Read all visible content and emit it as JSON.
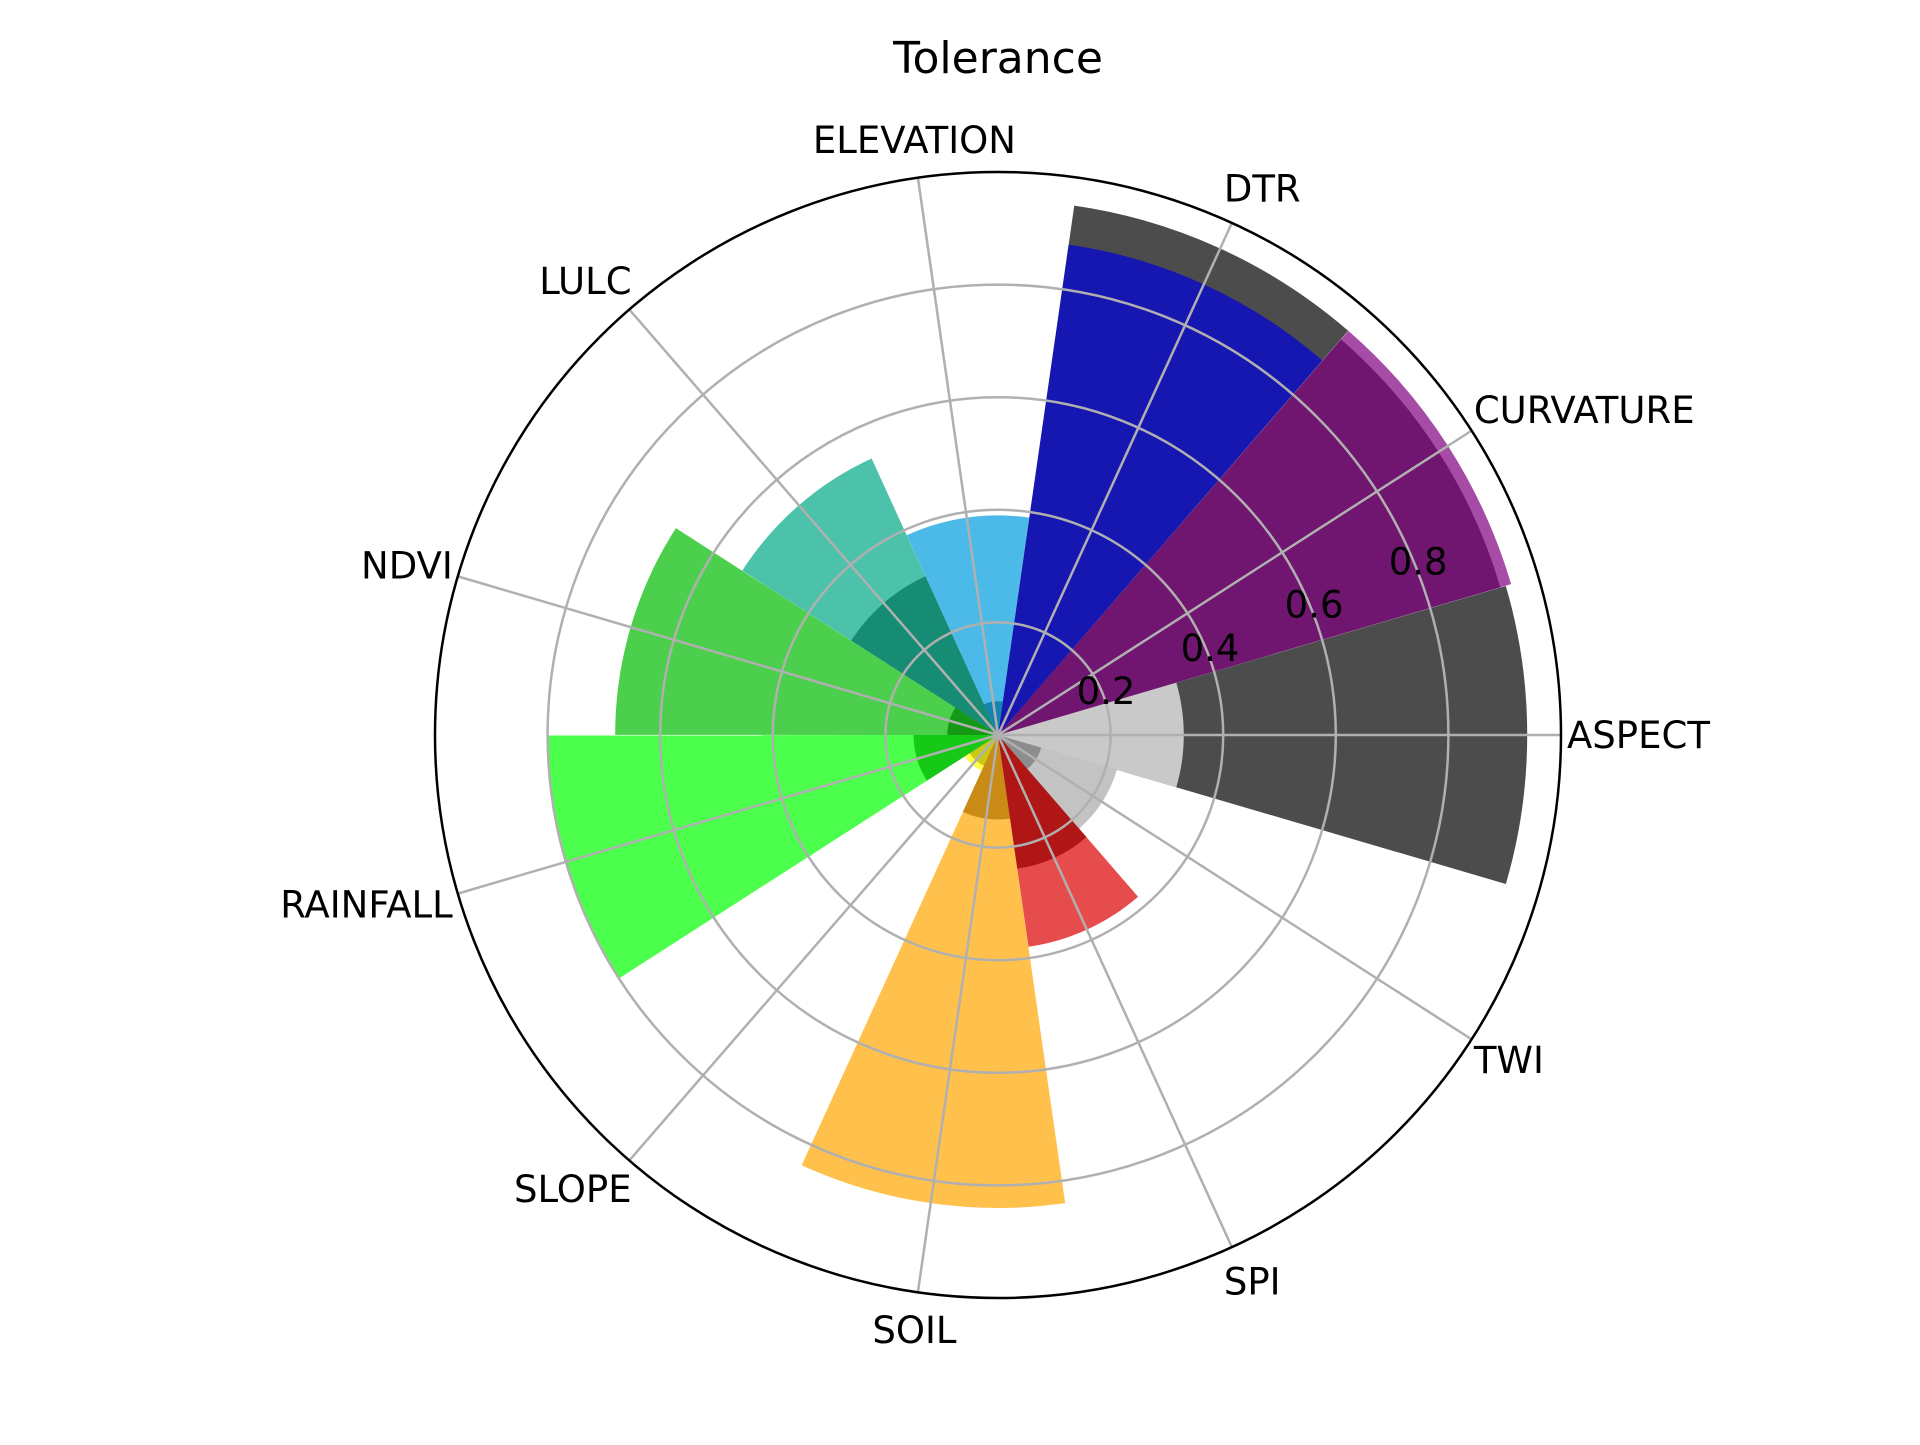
{
  "chart_data": {
    "type": "polar-bar",
    "title": "Tolerance",
    "r_ticks": [
      "0.2",
      "0.4",
      "0.6",
      "0.8"
    ],
    "r_tick_values": [
      0.2,
      0.4,
      0.6,
      0.8
    ],
    "rlim": [
      0,
      1.0
    ],
    "grid": true,
    "categories": [
      "ASPECT",
      "CURVATURE",
      "DTR",
      "ELEVATION",
      "LULC",
      "NDVI",
      "RAINFALL",
      "SLOPE",
      "SOIL",
      "SPI",
      "TWI"
    ],
    "series": [
      {
        "values": [
          0.94,
          0.93,
          0.95,
          0.06,
          0.31,
          0.09,
          0.15,
          0.06,
          0.15,
          0.24,
          0.08
        ],
        "color": "#000000",
        "opacity": 0.7
      },
      {
        "values": [
          0.33,
          0.95,
          0.88,
          0.39,
          0.54,
          0.68,
          0.8,
          0.07,
          0.84,
          0.38,
          0.22
        ],
        "colors": [
          "#ffffff",
          "#800080",
          "#0000dd",
          "#009de0",
          "#00a886",
          "#00bb00",
          "#00ff00",
          "#ffff00",
          "#ffa500",
          "#dd0000",
          "#aaaaaa"
        ],
        "opacity": 0.7
      }
    ]
  }
}
